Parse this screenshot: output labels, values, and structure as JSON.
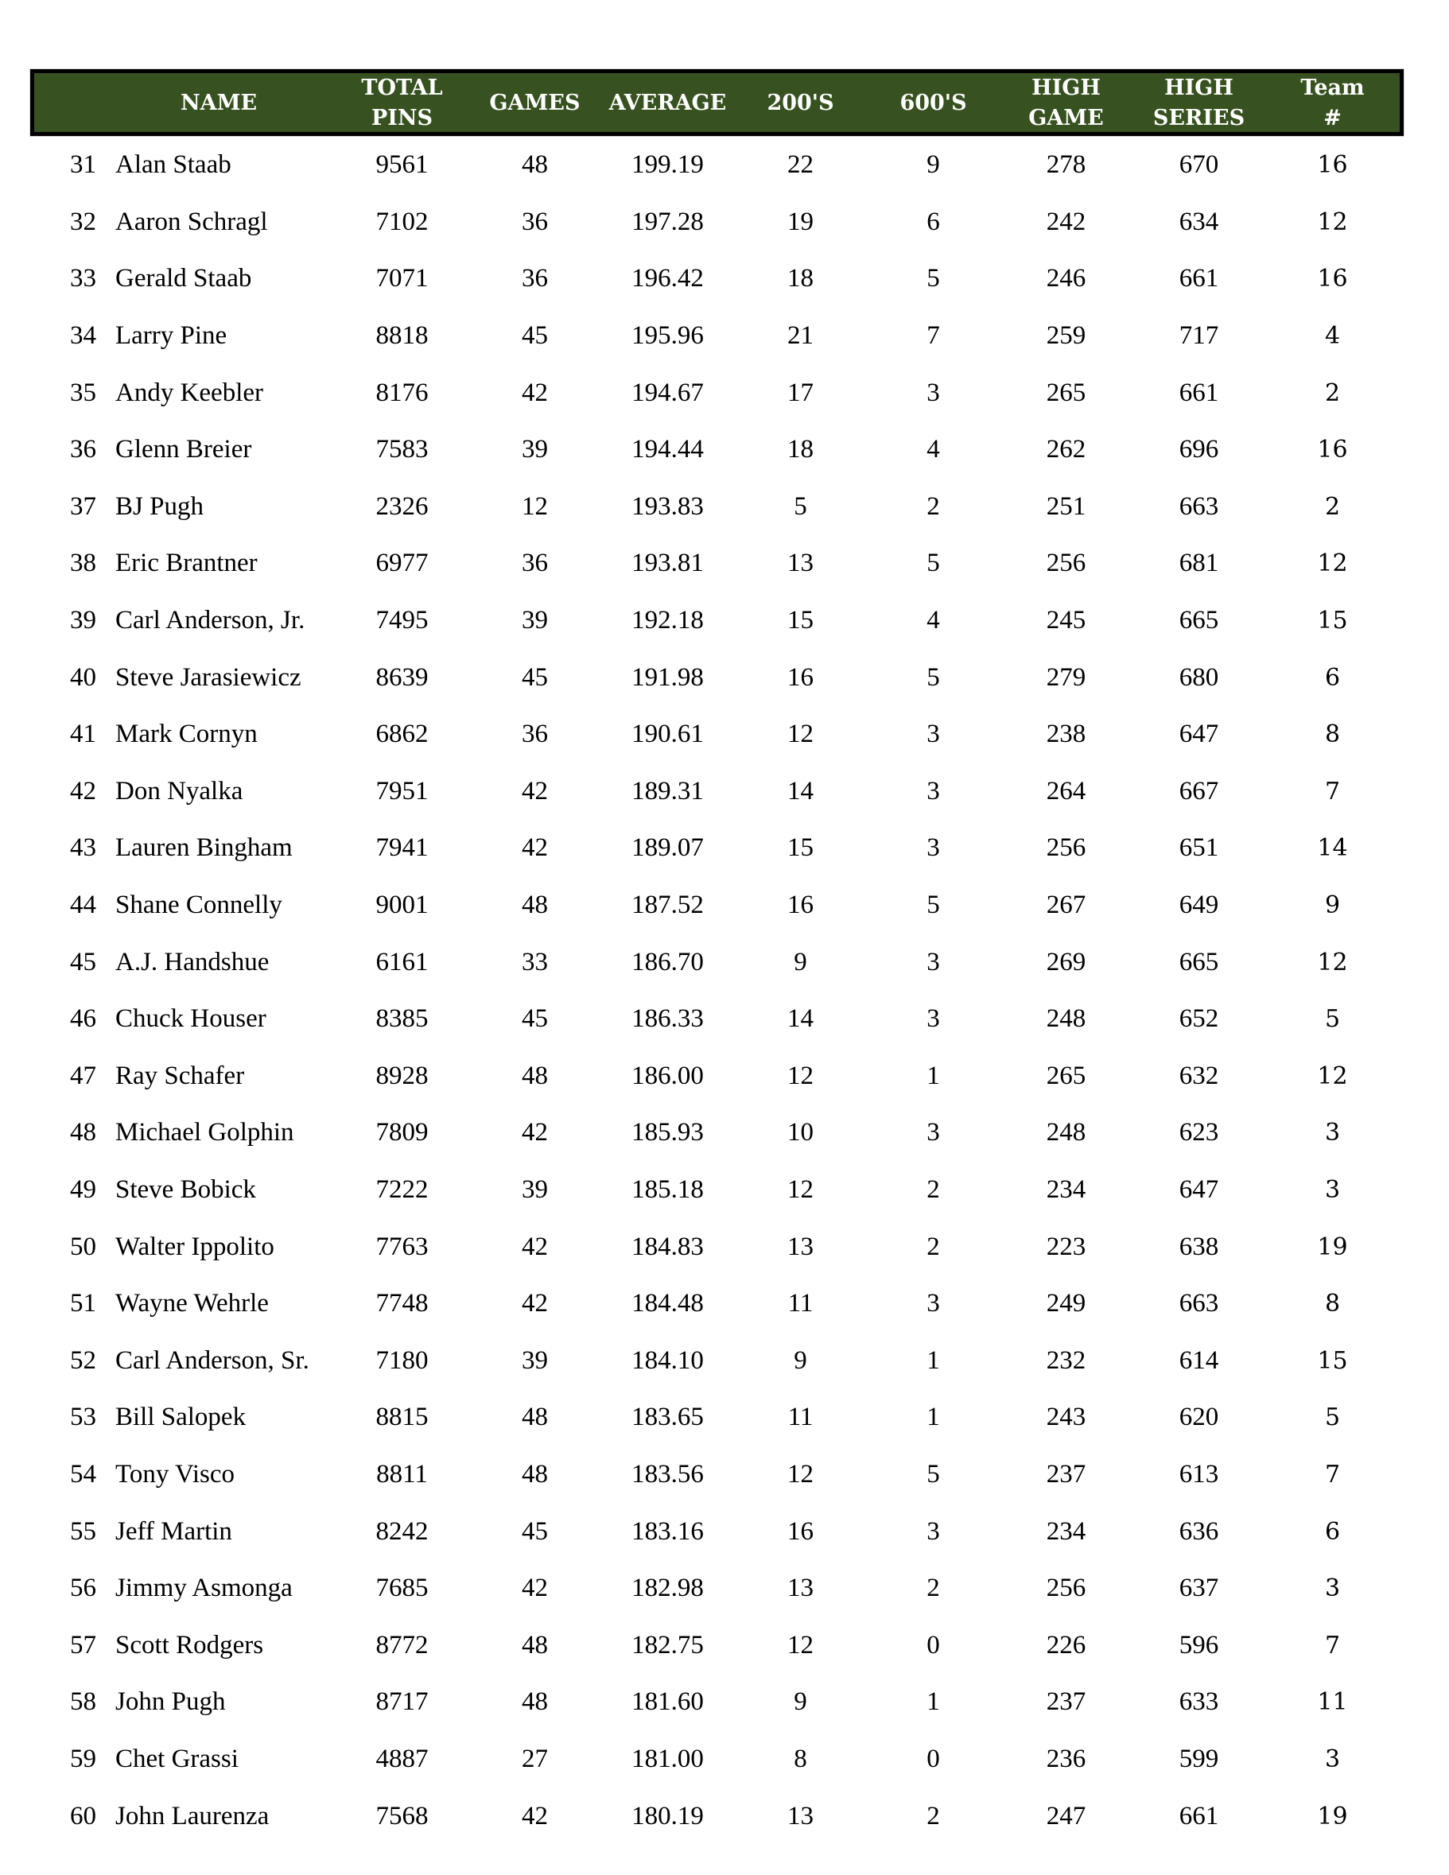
{
  "colors": {
    "header_bg": "#375220",
    "header_text": "#ffffff",
    "header_border": "#000000",
    "body_text": "#000000",
    "page_bg": "#ffffff"
  },
  "header": {
    "columns": [
      {
        "id": "rank",
        "lines": []
      },
      {
        "id": "name",
        "lines": [
          "NAME"
        ]
      },
      {
        "id": "total_pins",
        "lines": [
          "TOTAL",
          "PINS"
        ]
      },
      {
        "id": "games",
        "lines": [
          "GAMES"
        ]
      },
      {
        "id": "average",
        "lines": [
          "AVERAGE"
        ]
      },
      {
        "id": "200s",
        "lines": [
          "200'S"
        ]
      },
      {
        "id": "600s",
        "lines": [
          "600'S"
        ]
      },
      {
        "id": "high_game",
        "lines": [
          "HIGH",
          "GAME"
        ]
      },
      {
        "id": "high_series",
        "lines": [
          "HIGH",
          "SERIES"
        ]
      },
      {
        "id": "team_number",
        "lines": [
          "Team",
          "#"
        ]
      }
    ]
  },
  "rows": [
    {
      "rank": "31",
      "name": "Alan Staab",
      "total_pins": "9561",
      "games": "48",
      "average": "199.19",
      "s200": "22",
      "s600": "9",
      "high_game": "278",
      "high_series": "670",
      "team": "16"
    },
    {
      "rank": "32",
      "name": "Aaron Schragl",
      "total_pins": "7102",
      "games": "36",
      "average": "197.28",
      "s200": "19",
      "s600": "6",
      "high_game": "242",
      "high_series": "634",
      "team": "12"
    },
    {
      "rank": "33",
      "name": "Gerald Staab",
      "total_pins": "7071",
      "games": "36",
      "average": "196.42",
      "s200": "18",
      "s600": "5",
      "high_game": "246",
      "high_series": "661",
      "team": "16"
    },
    {
      "rank": "34",
      "name": "Larry Pine",
      "total_pins": "8818",
      "games": "45",
      "average": "195.96",
      "s200": "21",
      "s600": "7",
      "high_game": "259",
      "high_series": "717",
      "team": "4"
    },
    {
      "rank": "35",
      "name": "Andy Keebler",
      "total_pins": "8176",
      "games": "42",
      "average": "194.67",
      "s200": "17",
      "s600": "3",
      "high_game": "265",
      "high_series": "661",
      "team": "2"
    },
    {
      "rank": "36",
      "name": "Glenn Breier",
      "total_pins": "7583",
      "games": "39",
      "average": "194.44",
      "s200": "18",
      "s600": "4",
      "high_game": "262",
      "high_series": "696",
      "team": "16"
    },
    {
      "rank": "37",
      "name": "BJ Pugh",
      "total_pins": "2326",
      "games": "12",
      "average": "193.83",
      "s200": "5",
      "s600": "2",
      "high_game": "251",
      "high_series": "663",
      "team": "2"
    },
    {
      "rank": "38",
      "name": "Eric Brantner",
      "total_pins": "6977",
      "games": "36",
      "average": "193.81",
      "s200": "13",
      "s600": "5",
      "high_game": "256",
      "high_series": "681",
      "team": "12"
    },
    {
      "rank": "39",
      "name": "Carl Anderson, Jr.",
      "total_pins": "7495",
      "games": "39",
      "average": "192.18",
      "s200": "15",
      "s600": "4",
      "high_game": "245",
      "high_series": "665",
      "team": "15"
    },
    {
      "rank": "40",
      "name": "Steve Jarasiewicz",
      "total_pins": "8639",
      "games": "45",
      "average": "191.98",
      "s200": "16",
      "s600": "5",
      "high_game": "279",
      "high_series": "680",
      "team": "6"
    },
    {
      "rank": "41",
      "name": "Mark Cornyn",
      "total_pins": "6862",
      "games": "36",
      "average": "190.61",
      "s200": "12",
      "s600": "3",
      "high_game": "238",
      "high_series": "647",
      "team": "8"
    },
    {
      "rank": "42",
      "name": "Don Nyalka",
      "total_pins": "7951",
      "games": "42",
      "average": "189.31",
      "s200": "14",
      "s600": "3",
      "high_game": "264",
      "high_series": "667",
      "team": "7"
    },
    {
      "rank": "43",
      "name": "Lauren Bingham",
      "total_pins": "7941",
      "games": "42",
      "average": "189.07",
      "s200": "15",
      "s600": "3",
      "high_game": "256",
      "high_series": "651",
      "team": "14"
    },
    {
      "rank": "44",
      "name": "Shane Connelly",
      "total_pins": "9001",
      "games": "48",
      "average": "187.52",
      "s200": "16",
      "s600": "5",
      "high_game": "267",
      "high_series": "649",
      "team": "9"
    },
    {
      "rank": "45",
      "name": "A.J. Handshue",
      "total_pins": "6161",
      "games": "33",
      "average": "186.70",
      "s200": "9",
      "s600": "3",
      "high_game": "269",
      "high_series": "665",
      "team": "12"
    },
    {
      "rank": "46",
      "name": "Chuck Houser",
      "total_pins": "8385",
      "games": "45",
      "average": "186.33",
      "s200": "14",
      "s600": "3",
      "high_game": "248",
      "high_series": "652",
      "team": "5"
    },
    {
      "rank": "47",
      "name": "Ray Schafer",
      "total_pins": "8928",
      "games": "48",
      "average": "186.00",
      "s200": "12",
      "s600": "1",
      "high_game": "265",
      "high_series": "632",
      "team": "12"
    },
    {
      "rank": "48",
      "name": "Michael Golphin",
      "total_pins": "7809",
      "games": "42",
      "average": "185.93",
      "s200": "10",
      "s600": "3",
      "high_game": "248",
      "high_series": "623",
      "team": "3"
    },
    {
      "rank": "49",
      "name": "Steve Bobick",
      "total_pins": "7222",
      "games": "39",
      "average": "185.18",
      "s200": "12",
      "s600": "2",
      "high_game": "234",
      "high_series": "647",
      "team": "3"
    },
    {
      "rank": "50",
      "name": "Walter Ippolito",
      "total_pins": "7763",
      "games": "42",
      "average": "184.83",
      "s200": "13",
      "s600": "2",
      "high_game": "223",
      "high_series": "638",
      "team": "19"
    },
    {
      "rank": "51",
      "name": "Wayne Wehrle",
      "total_pins": "7748",
      "games": "42",
      "average": "184.48",
      "s200": "11",
      "s600": "3",
      "high_game": "249",
      "high_series": "663",
      "team": "8"
    },
    {
      "rank": "52",
      "name": "Carl Anderson, Sr.",
      "total_pins": "7180",
      "games": "39",
      "average": "184.10",
      "s200": "9",
      "s600": "1",
      "high_game": "232",
      "high_series": "614",
      "team": "15"
    },
    {
      "rank": "53",
      "name": "Bill Salopek",
      "total_pins": "8815",
      "games": "48",
      "average": "183.65",
      "s200": "11",
      "s600": "1",
      "high_game": "243",
      "high_series": "620",
      "team": "5"
    },
    {
      "rank": "54",
      "name": "Tony Visco",
      "total_pins": "8811",
      "games": "48",
      "average": "183.56",
      "s200": "12",
      "s600": "5",
      "high_game": "237",
      "high_series": "613",
      "team": "7"
    },
    {
      "rank": "55",
      "name": "Jeff Martin",
      "total_pins": "8242",
      "games": "45",
      "average": "183.16",
      "s200": "16",
      "s600": "3",
      "high_game": "234",
      "high_series": "636",
      "team": "6"
    },
    {
      "rank": "56",
      "name": "Jimmy Asmonga",
      "total_pins": "7685",
      "games": "42",
      "average": "182.98",
      "s200": "13",
      "s600": "2",
      "high_game": "256",
      "high_series": "637",
      "team": "3"
    },
    {
      "rank": "57",
      "name": "Scott Rodgers",
      "total_pins": "8772",
      "games": "48",
      "average": "182.75",
      "s200": "12",
      "s600": "0",
      "high_game": "226",
      "high_series": "596",
      "team": "7"
    },
    {
      "rank": "58",
      "name": "John Pugh",
      "total_pins": "8717",
      "games": "48",
      "average": "181.60",
      "s200": "9",
      "s600": "1",
      "high_game": "237",
      "high_series": "633",
      "team": "11"
    },
    {
      "rank": "59",
      "name": "Chet Grassi",
      "total_pins": "4887",
      "games": "27",
      "average": "181.00",
      "s200": "8",
      "s600": "0",
      "high_game": "236",
      "high_series": "599",
      "team": "3"
    },
    {
      "rank": "60",
      "name": "John Laurenza",
      "total_pins": "7568",
      "games": "42",
      "average": "180.19",
      "s200": "13",
      "s600": "2",
      "high_game": "247",
      "high_series": "661",
      "team": "19"
    }
  ]
}
